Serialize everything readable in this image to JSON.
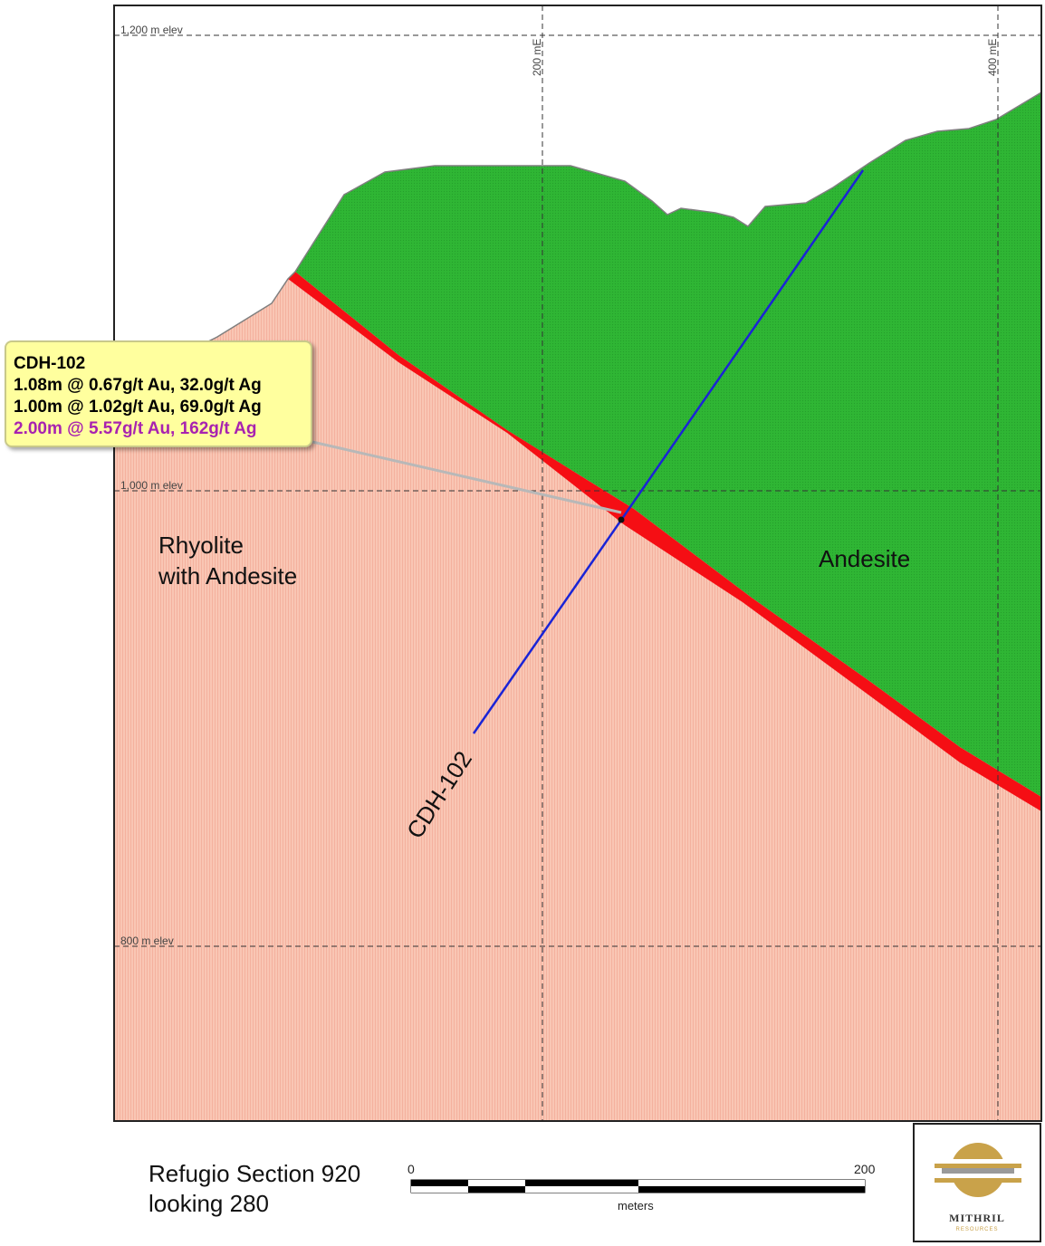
{
  "section": {
    "elevation_labels": [
      "1,200 m elev",
      "1,000 m elev",
      "800 m elev"
    ],
    "easting_labels": [
      "200 mE",
      "400 mE"
    ],
    "units": {
      "rhyolite_line1": "Rhyolite",
      "rhyolite_line2": "with Andesite",
      "andesite": "Andesite"
    },
    "drill_hole_label": "CDH-102",
    "colors": {
      "rhyolite": "#f9c6b4",
      "andesite": "#2fb634",
      "vein": "#f50e14",
      "drill_hole": "#1a24d6",
      "callout_bg": "#ffff9e",
      "highlight_text": "#a822b0"
    }
  },
  "callout": {
    "title": "CDH-102",
    "intercepts": [
      "1.08m @ 0.67g/t Au, 32.0g/t Ag",
      "1.00m @ 1.02g/t Au, 69.0g/t Ag",
      "2.00m @ 5.57g/t Au, 162g/t Ag"
    ]
  },
  "caption": {
    "line1": "Refugio Section 920",
    "line2": "looking 280"
  },
  "scale_bar": {
    "start": "0",
    "end": "200",
    "unit": "meters"
  },
  "logo": {
    "name": "MITHRIL",
    "subtitle": "RESOURCES"
  }
}
